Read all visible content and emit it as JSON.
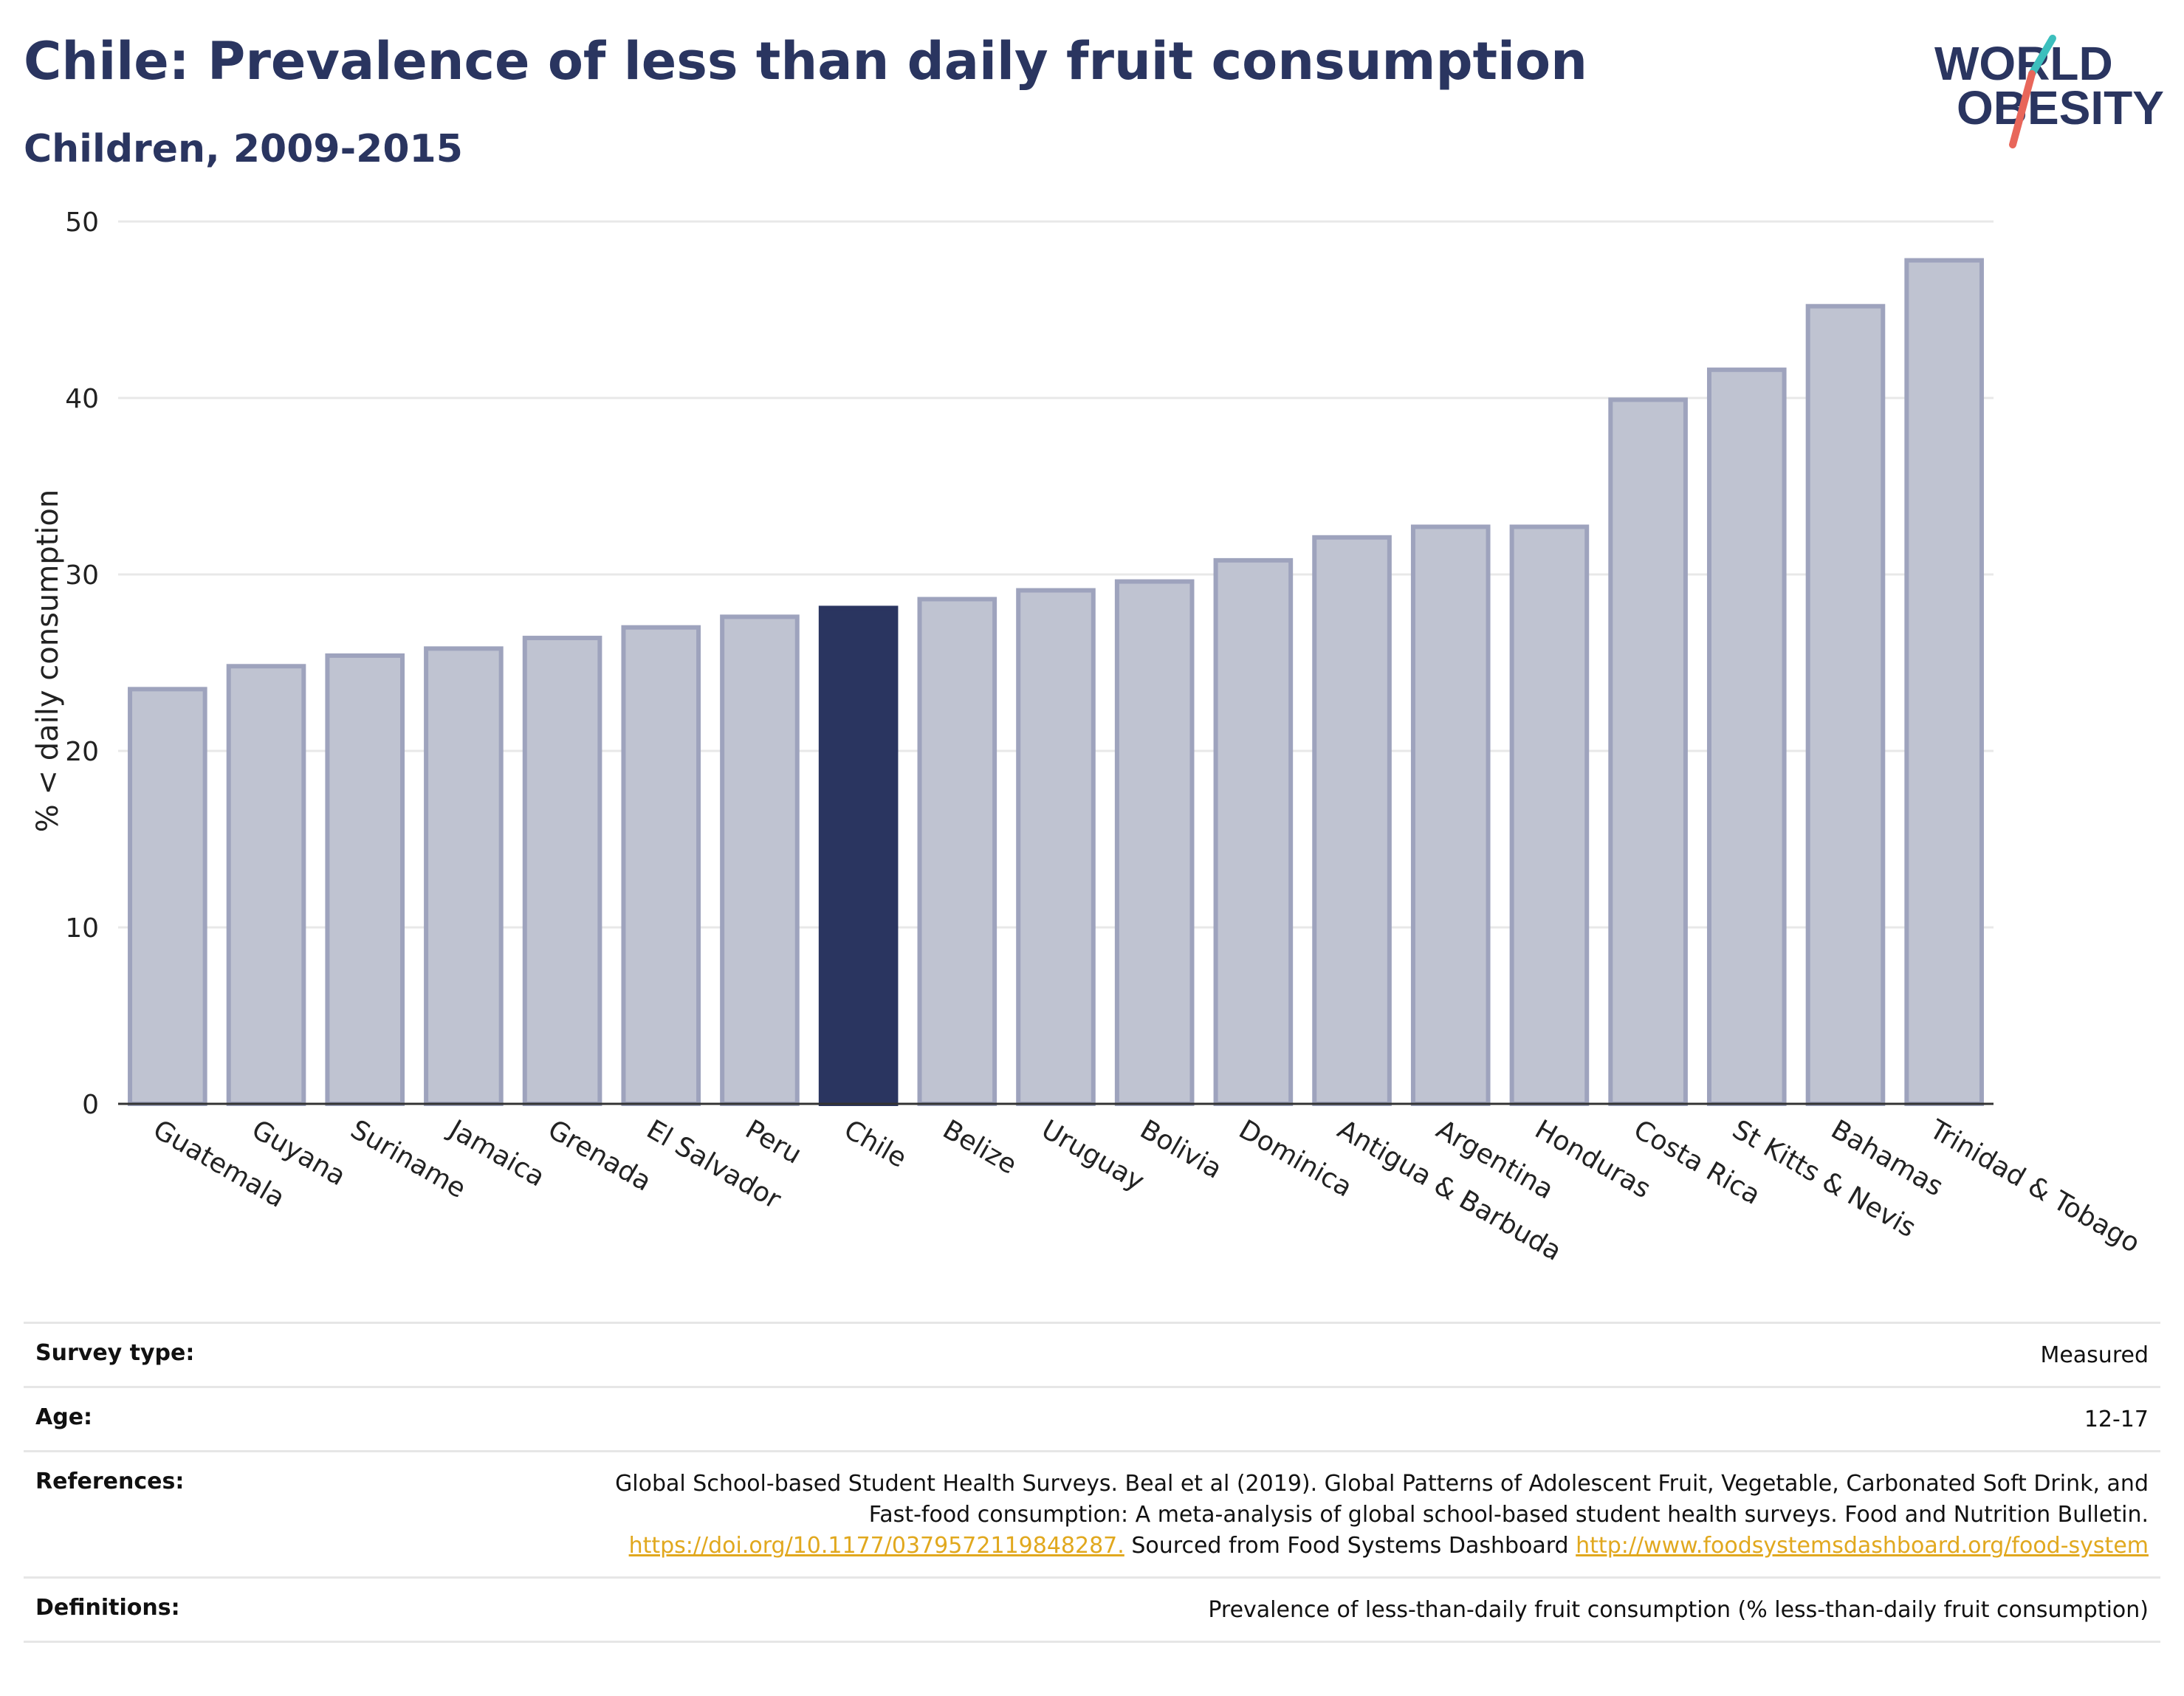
{
  "header": {
    "title": "Chile: Prevalence of less than daily fruit consumption",
    "subtitle": "Children, 2009-2015"
  },
  "logo": {
    "line1": "WORLD",
    "line2": "OBESITY",
    "colors": {
      "text": "#2a3560",
      "slash_teal": "#3cbfbd",
      "slash_coral": "#e8665a"
    }
  },
  "chart_data": {
    "type": "bar",
    "categories": [
      "Guatemala",
      "Guyana",
      "Suriname",
      "Jamaica",
      "Grenada",
      "El Salvador",
      "Peru",
      "Chile",
      "Belize",
      "Uruguay",
      "Bolivia",
      "Dominica",
      "Antigua & Barbuda",
      "Argentina",
      "Honduras",
      "Costa Rica",
      "St Kitts & Nevis",
      "Bahamas",
      "Trinidad & Tobago"
    ],
    "values": [
      23.5,
      24.8,
      25.4,
      25.8,
      26.4,
      27.0,
      27.6,
      28.1,
      28.6,
      29.1,
      29.6,
      30.8,
      32.1,
      32.7,
      32.7,
      39.9,
      41.6,
      45.2,
      47.8
    ],
    "highlight": "Chile",
    "ylabel": "% < daily consumption",
    "ylim": [
      0,
      50
    ],
    "yticks": [
      0,
      10,
      20,
      30,
      40,
      50
    ],
    "grid": true,
    "colors": {
      "bar_fill": "#bfc3d1",
      "bar_stroke": "#9ea3bd",
      "highlight": "#2a3560",
      "grid": "#e8e8e8",
      "axis": "#333333",
      "text": "#222222"
    }
  },
  "info_table": {
    "survey_type": {
      "label": "Survey type:",
      "value": "Measured"
    },
    "age": {
      "label": "Age:",
      "value": "12-17"
    },
    "references": {
      "label": "References:",
      "text1": "Global School-based Student Health Surveys. Beal et al (2019). Global Patterns of Adolescent Fruit, Vegetable, Carbonated Soft Drink, and Fast-food consumption: A meta-analysis of global school-based student health surveys. Food and Nutrition Bulletin.",
      "link1": "https://doi.org/10.1177/0379572119848287.",
      "text2": "Sourced from Food Systems Dashboard",
      "link2": "http://www.foodsystemsdashboard.org/food-system"
    },
    "definitions": {
      "label": "Definitions:",
      "value": "Prevalence of less-than-daily fruit consumption (% less-than-daily fruit consumption)"
    }
  }
}
